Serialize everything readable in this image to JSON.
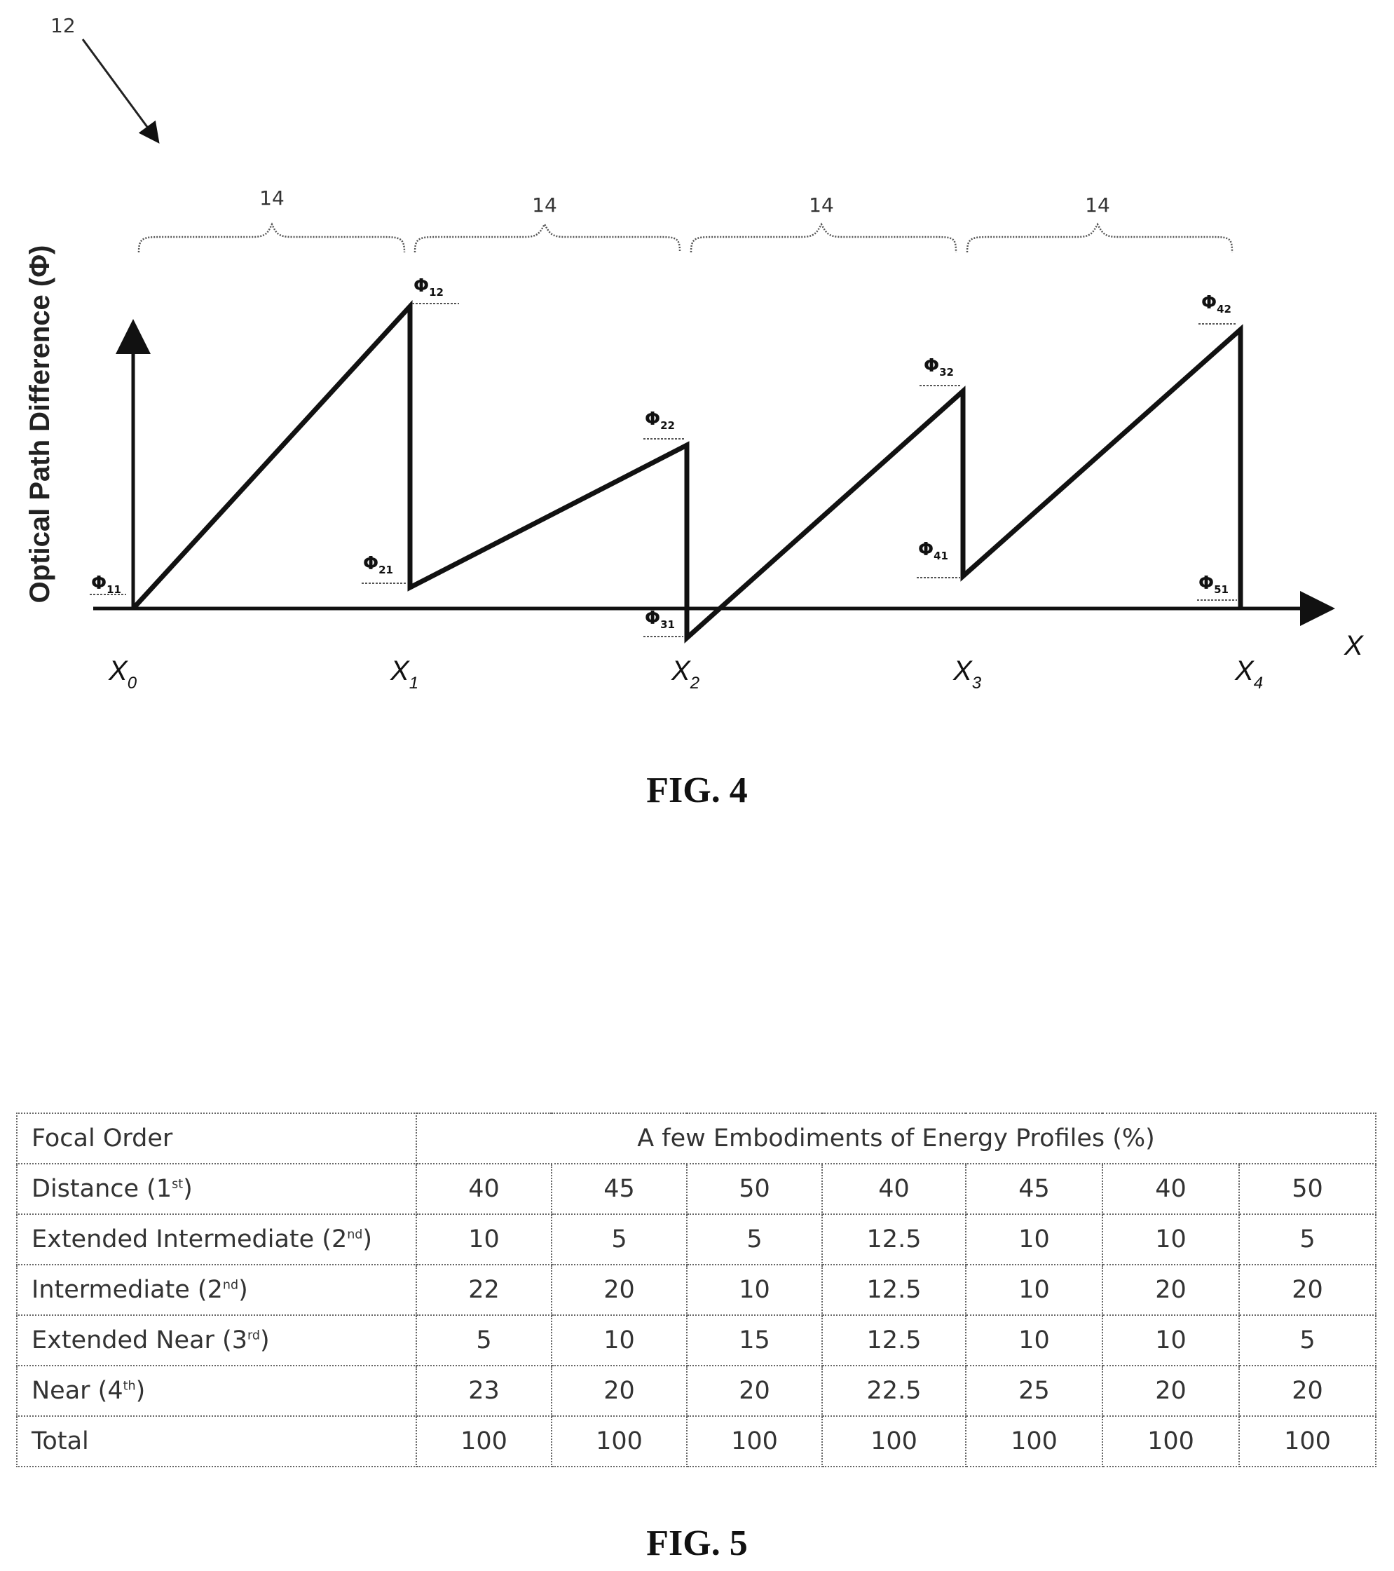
{
  "fig4": {
    "reference_number": "12",
    "y_axis_label": "Optical Path Difference (Φ)",
    "x_axis_label": "X",
    "zone_label": "14",
    "zone_labels": [
      "14",
      "14",
      "14",
      "14"
    ],
    "x_positions": [
      {
        "main": "X",
        "sub": "0"
      },
      {
        "main": "X",
        "sub": "1"
      },
      {
        "main": "X",
        "sub": "2"
      },
      {
        "main": "X",
        "sub": "3"
      },
      {
        "main": "X",
        "sub": "4"
      }
    ],
    "phi_labels": [
      {
        "main": "Φ",
        "sub": "11"
      },
      {
        "main": "Φ",
        "sub": "12"
      },
      {
        "main": "Φ",
        "sub": "21"
      },
      {
        "main": "Φ",
        "sub": "22"
      },
      {
        "main": "Φ",
        "sub": "31"
      },
      {
        "main": "Φ",
        "sub": "32"
      },
      {
        "main": "Φ",
        "sub": "41"
      },
      {
        "main": "Φ",
        "sub": "42"
      },
      {
        "main": "Φ",
        "sub": "51"
      }
    ],
    "caption": "FIG. 4"
  },
  "fig5": {
    "header_label": "Focal Order",
    "header_title": "A few Embodiments of Energy Profiles (%)",
    "rows": [
      {
        "label": "Distance (1",
        "sup": "st",
        "suffix": ")",
        "values": [
          "40",
          "45",
          "50",
          "40",
          "45",
          "40",
          "50"
        ]
      },
      {
        "label": "Extended Intermediate (2",
        "sup": "nd",
        "suffix": ")",
        "values": [
          "10",
          "5",
          "5",
          "12.5",
          "10",
          "10",
          "5"
        ]
      },
      {
        "label": "Intermediate (2",
        "sup": "nd",
        "suffix": ")",
        "values": [
          "22",
          "20",
          "10",
          "12.5",
          "10",
          "20",
          "20"
        ]
      },
      {
        "label": "Extended Near (3",
        "sup": "rd",
        "suffix": ")",
        "values": [
          "5",
          "10",
          "15",
          "12.5",
          "10",
          "10",
          "5"
        ]
      },
      {
        "label": "Near (4",
        "sup": "th",
        "suffix": ")",
        "values": [
          "23",
          "20",
          "20",
          "22.5",
          "25",
          "20",
          "20"
        ]
      },
      {
        "label": "Total",
        "sup": "",
        "suffix": "",
        "values": [
          "100",
          "100",
          "100",
          "100",
          "100",
          "100",
          "100"
        ]
      }
    ],
    "caption": "FIG. 5"
  }
}
